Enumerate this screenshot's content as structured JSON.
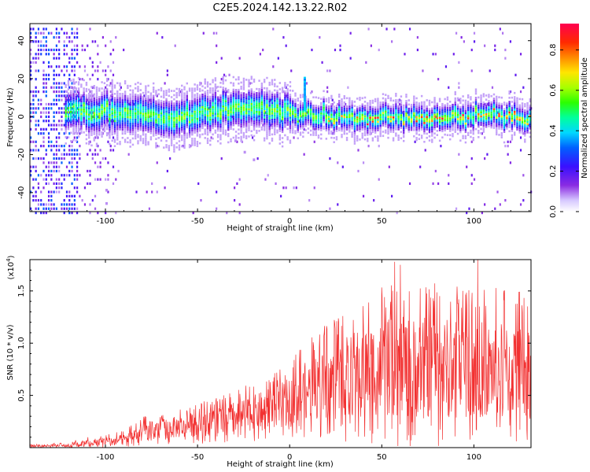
{
  "title": "C2E5.2024.142.13.22.R02",
  "colors": {
    "snr_line": "#f23030",
    "axis": "#000000"
  },
  "chart_data": [
    {
      "type": "heatmap",
      "title": "C2E5.2024.142.13.22.R02",
      "xlabel": "Height of straight line (km)",
      "ylabel": "Frequency (Hz)",
      "xlim": [
        -141,
        131
      ],
      "ylim": [
        -50,
        49
      ],
      "x_ticks": [
        -100,
        -50,
        0,
        50,
        100
      ],
      "y_ticks": [
        -40,
        -20,
        0,
        20,
        40
      ],
      "colorbar": {
        "label": "Normalized spectral amplitude",
        "range": [
          0,
          0.93
        ],
        "ticks": [
          "0.0",
          "0.2",
          "0.4",
          "0.6",
          "0.8"
        ],
        "tick_values": [
          0,
          0.2,
          0.4,
          0.6,
          0.8
        ]
      },
      "ridge": {
        "center_freq_hz": [
          {
            "x": -120,
            "f": 3
          },
          {
            "x": -100,
            "f": 3
          },
          {
            "x": -80,
            "f": 2
          },
          {
            "x": -70,
            "f": -1
          },
          {
            "x": -50,
            "f": 2
          },
          {
            "x": -30,
            "f": 5
          },
          {
            "x": -10,
            "f": 4
          },
          {
            "x": 0,
            "f": 2
          },
          {
            "x": 20,
            "f": 1
          },
          {
            "x": 40,
            "f": -1
          },
          {
            "x": 60,
            "f": 0
          },
          {
            "x": 80,
            "f": 0
          },
          {
            "x": 100,
            "f": 1
          },
          {
            "x": 120,
            "f": 1
          },
          {
            "x": 130,
            "f": -1
          }
        ],
        "spike": {
          "x": 8,
          "f_top": 21
        }
      }
    },
    {
      "type": "line",
      "xlabel": "Height of straight line (km)",
      "ylabel": "SNR (10 * v/v)",
      "scale_label": "(x10",
      "scale_exp": "4",
      "scale_close": ")",
      "xlim": [
        -141,
        131
      ],
      "ylim": [
        0,
        1.8
      ],
      "x_ticks": [
        -100,
        -50,
        0,
        50,
        100
      ],
      "y_ticks": [
        "0.5",
        "1.0",
        "1.5"
      ],
      "y_tick_values": [
        0.5,
        1.0,
        1.5
      ],
      "envelope": [
        {
          "x": -141,
          "lo": 0.0,
          "hi": 0.03
        },
        {
          "x": -120,
          "lo": 0.0,
          "hi": 0.05
        },
        {
          "x": -110,
          "lo": 0.0,
          "hi": 0.1
        },
        {
          "x": -90,
          "lo": 0.0,
          "hi": 0.16
        },
        {
          "x": -80,
          "lo": 0.02,
          "hi": 0.3
        },
        {
          "x": -60,
          "lo": 0.03,
          "hi": 0.38
        },
        {
          "x": -40,
          "lo": 0.04,
          "hi": 0.48
        },
        {
          "x": -20,
          "lo": 0.06,
          "hi": 0.62
        },
        {
          "x": 0,
          "lo": 0.1,
          "hi": 0.82
        },
        {
          "x": 10,
          "lo": 0.1,
          "hi": 1.05
        },
        {
          "x": 25,
          "lo": 0.05,
          "hi": 1.25
        },
        {
          "x": 40,
          "lo": 0.05,
          "hi": 1.5
        },
        {
          "x": 60,
          "lo": 0.0,
          "hi": 1.6
        },
        {
          "x": 80,
          "lo": 0.0,
          "hi": 1.6
        },
        {
          "x": 100,
          "lo": 0.02,
          "hi": 1.55
        },
        {
          "x": 131,
          "lo": 0.03,
          "hi": 1.5
        }
      ],
      "peaks": [
        {
          "x": 57,
          "y": 1.78
        },
        {
          "x": 60,
          "y": 1.75
        },
        {
          "x": 102,
          "y": 1.8
        }
      ]
    }
  ]
}
